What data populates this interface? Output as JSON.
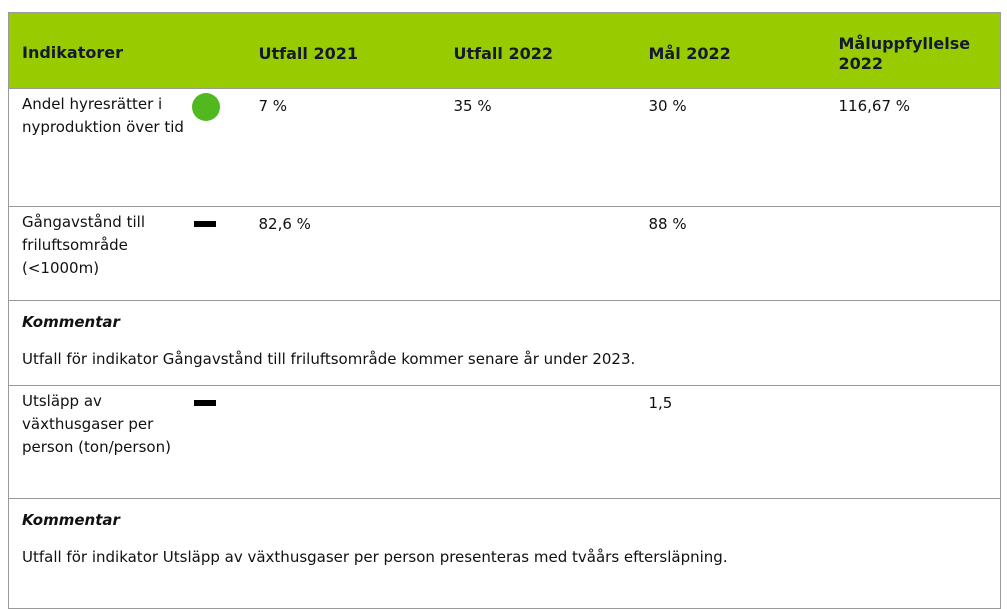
{
  "table": {
    "header": [
      "Indikatorer",
      "Utfall 2021",
      "Utfall 2022",
      "Mål 2022",
      "Måluppfyllelse 2022"
    ],
    "header_color": "#99cc00",
    "rows": [
      {
        "indicator": "Andel hyresrätter i nyproduktion över tid",
        "status": {
          "shape": "circle",
          "color": "#52b820"
        },
        "cells": [
          "7 %",
          "35 %",
          "30 %",
          "116,67 %"
        ]
      },
      {
        "indicator": "Gångavstånd till friluftsområde (<1000m)",
        "status": {
          "shape": "bar",
          "color": "#000000"
        },
        "cells": [
          "82,6 %",
          null,
          "88 %",
          null
        ]
      },
      {
        "comment": {
          "label": "Kommentar",
          "text": "Utfall för indikator Gångavstånd till friluftsområde kommer senare år under 2023."
        }
      },
      {
        "indicator": "Utsläpp av växthusgaser per person (ton/person)",
        "status": {
          "shape": "bar",
          "color": "#000000"
        },
        "cells": [
          null,
          null,
          "1,5",
          null
        ]
      },
      {
        "comment": {
          "label": "Kommentar",
          "text": "Utfall för indikator Utsläpp av växthusgaser per person presenteras med tvåårs eftersläpning."
        }
      }
    ]
  }
}
